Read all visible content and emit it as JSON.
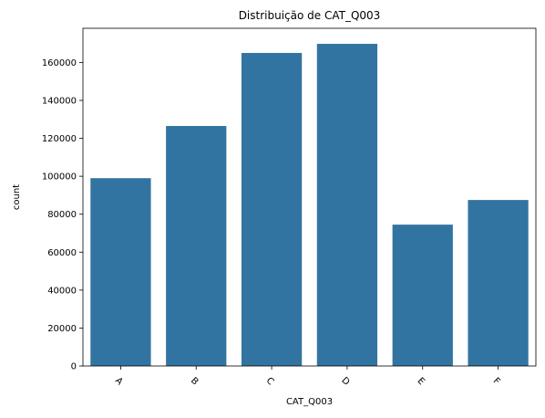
{
  "chart_data": {
    "type": "bar",
    "title": "Distribuição de CAT_Q003",
    "xlabel": "CAT_Q003",
    "ylabel": "count",
    "categories": [
      "A",
      "B",
      "C",
      "D",
      "E",
      "F"
    ],
    "values": [
      99000,
      126500,
      165000,
      169800,
      74500,
      87500
    ],
    "ylim": [
      0,
      178000
    ],
    "yticks": [
      0,
      20000,
      40000,
      60000,
      80000,
      100000,
      120000,
      140000,
      160000
    ],
    "ytick_labels": [
      "0",
      "20000",
      "40000",
      "60000",
      "80000",
      "100000",
      "120000",
      "140000",
      "160000"
    ],
    "xtick_rotation": 45,
    "grid": false,
    "bar_color": "#3274a1"
  }
}
